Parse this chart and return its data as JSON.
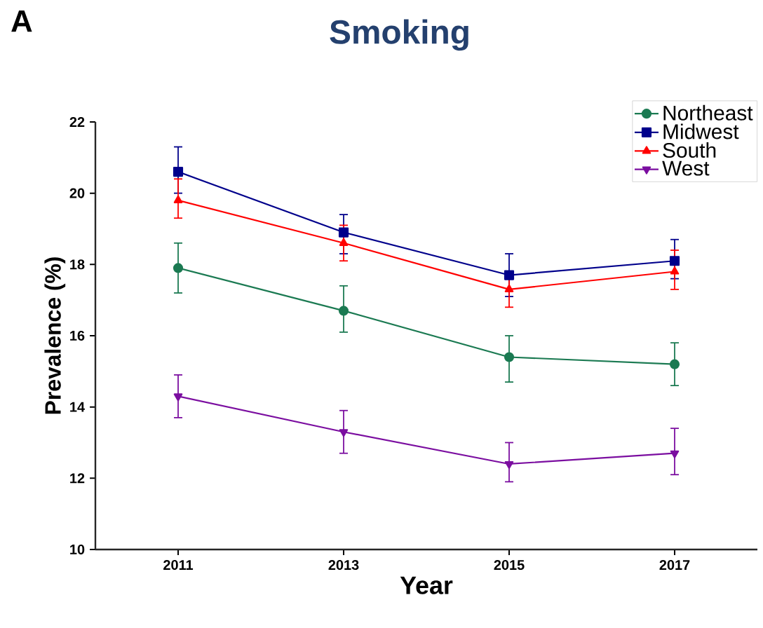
{
  "chart_data": {
    "type": "line",
    "title": "Smoking",
    "xlabel": "Year",
    "ylabel": "Prevalence (%)",
    "annotations": [
      "A"
    ],
    "x": [
      2011,
      2013,
      2015,
      2017
    ],
    "xlim": [
      2010,
      2018
    ],
    "xticks": [
      2011,
      2013,
      2015,
      2017
    ],
    "ylim": [
      10,
      22
    ],
    "yticks": [
      10,
      12,
      14,
      16,
      18,
      20,
      22
    ],
    "grid": false,
    "legend": "top right",
    "series": [
      {
        "name": "Northeast",
        "color": "#1b7a52",
        "marker": "circle",
        "values": [
          17.9,
          16.7,
          15.4,
          15.2
        ],
        "errors": [
          [
            17.2,
            18.6
          ],
          [
            16.1,
            17.4
          ],
          [
            14.7,
            16.0
          ],
          [
            14.6,
            15.8
          ]
        ]
      },
      {
        "name": "Midwest",
        "color": "#00008b",
        "marker": "square",
        "values": [
          20.6,
          18.9,
          17.7,
          18.1
        ],
        "errors": [
          [
            20.0,
            21.3
          ],
          [
            18.3,
            19.4
          ],
          [
            17.1,
            18.3
          ],
          [
            17.6,
            18.7
          ]
        ]
      },
      {
        "name": "South",
        "color": "#ff0000",
        "marker": "triangle",
        "values": [
          19.8,
          18.6,
          17.3,
          17.8
        ],
        "errors": [
          [
            19.3,
            20.4
          ],
          [
            18.1,
            19.1
          ],
          [
            16.8,
            17.8
          ],
          [
            17.3,
            18.4
          ]
        ]
      },
      {
        "name": "West",
        "color": "#7b0ea0",
        "marker": "triangle-down",
        "values": [
          14.3,
          13.3,
          12.4,
          12.7
        ],
        "errors": [
          [
            13.7,
            14.9
          ],
          [
            12.7,
            13.9
          ],
          [
            11.9,
            13.0
          ],
          [
            12.1,
            13.4
          ]
        ]
      }
    ]
  }
}
